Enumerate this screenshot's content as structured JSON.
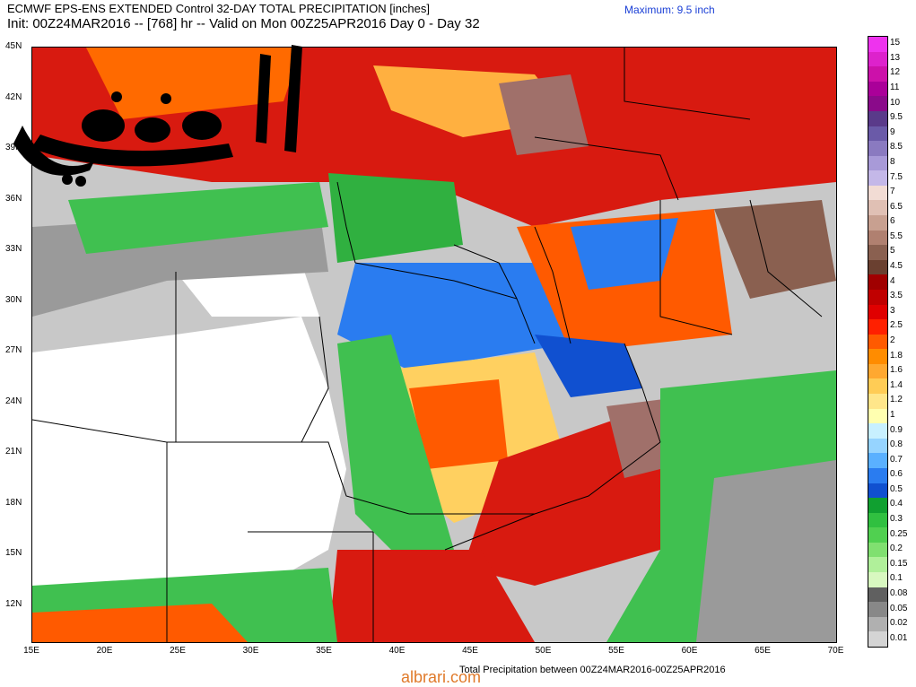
{
  "header": {
    "line1": "ECMWF EPS-ENS EXTENDED Control 32-DAY TOTAL PRECIPITATION [inches]",
    "line2": "Init: 00Z24MAR2016 -- [768] hr -- Valid on Mon 00Z25APR2016  Day 0 - Day 32",
    "maximum": "Maximum: 9.5 inch"
  },
  "footer": "Total Precipitation between 00Z24MAR2016-00Z25APR2016",
  "watermark": "albrari.com",
  "logo_text": "اليوسفي",
  "lat_labels": [
    "45N",
    "42N",
    "39N",
    "36N",
    "33N",
    "30N",
    "27N",
    "24N",
    "21N",
    "18N",
    "15N",
    "12N"
  ],
  "lon_labels": [
    "15E",
    "20E",
    "25E",
    "30E",
    "35E",
    "40E",
    "45E",
    "50E",
    "55E",
    "60E",
    "65E",
    "70E"
  ],
  "colorbar": {
    "labels": [
      "15",
      "13",
      "12",
      "11",
      "10",
      "9.5",
      "9",
      "8.5",
      "8",
      "7.5",
      "7",
      "6.5",
      "6",
      "5.5",
      "5",
      "4.5",
      "4",
      "3.5",
      "3",
      "2.5",
      "2",
      "1.8",
      "1.6",
      "1.4",
      "1.2",
      "1",
      "0.9",
      "0.8",
      "0.7",
      "0.6",
      "0.5",
      "0.4",
      "0.3",
      "0.25",
      "0.2",
      "0.15",
      "0.1",
      "0.08",
      "0.05",
      "0.02",
      "0.01"
    ],
    "colors": [
      "#ee33ee",
      "#dd22cc",
      "#cc11aa",
      "#aa0099",
      "#8a0a8a",
      "#5a3a8a",
      "#6a5aa8",
      "#8a7ac0",
      "#a89ad8",
      "#c4b8e8",
      "#f2dcd4",
      "#e0c0b4",
      "#c8a090",
      "#b08070",
      "#8a6050",
      "#6a4030",
      "#a00000",
      "#c00000",
      "#e00000",
      "#ff2000",
      "#ff5a00",
      "#ff8c00",
      "#ffa830",
      "#ffcc55",
      "#ffe68a",
      "#ffffb0",
      "#c8f0ff",
      "#96d4ff",
      "#5ab0ff",
      "#2a7cf0",
      "#1050d0",
      "#10a030",
      "#30c040",
      "#50d050",
      "#80e070",
      "#b0f09a",
      "#d8f8c0",
      "#606060",
      "#888888",
      "#b0b0b0",
      "#d4d4d4"
    ]
  }
}
